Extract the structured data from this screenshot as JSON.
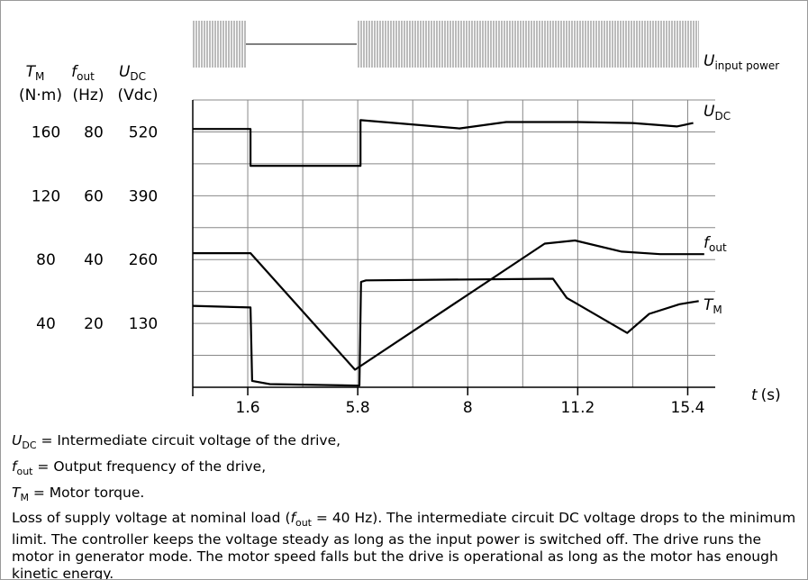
{
  "chart_data": {
    "type": "line",
    "input_power_label": {
      "main": "U",
      "sub": "input power"
    },
    "axis_headers": [
      {
        "main": "T",
        "sub": "M",
        "unit": "(N·m)"
      },
      {
        "main": "f",
        "sub": "out",
        "unit": "(Hz)"
      },
      {
        "main": "U",
        "sub": "DC",
        "unit": "(Vdc)"
      }
    ],
    "xlabel": {
      "main": "t",
      "unit": "(s)"
    },
    "xlim": [
      0,
      9.5
    ],
    "xticks": [
      {
        "value": 1,
        "label": "1.6"
      },
      {
        "value": 3,
        "label": "5.8"
      },
      {
        "value": 5,
        "label": "8"
      },
      {
        "value": 7,
        "label": "11.2"
      },
      {
        "value": 9,
        "label": "15.4"
      }
    ],
    "minor_xticks": [
      2,
      4,
      6,
      8
    ],
    "ylim": [
      0,
      585
    ],
    "yticks": [
      130,
      260,
      390,
      520
    ],
    "minor_yticks": [
      65,
      195,
      325,
      455,
      585
    ],
    "y2lim": [
      0,
      90
    ],
    "y2ticks": [
      20,
      40,
      60,
      80
    ],
    "y3lim": [
      0,
      180
    ],
    "y3ticks": [
      40,
      80,
      120,
      160
    ],
    "grid": true,
    "series": [
      {
        "name": "U",
        "name_sub": "DC",
        "color": "#000000",
        "axis": "y",
        "x": [
          0,
          1.05,
          1.05,
          3.05,
          3.05,
          4.85,
          5.7,
          7,
          8,
          8.8,
          9.1
        ],
        "values": [
          526,
          526,
          451,
          451,
          544,
          527,
          540,
          540,
          538,
          531,
          538
        ]
      },
      {
        "name": "f",
        "name_sub": "out",
        "color": "#000000",
        "axis": "y2",
        "x": [
          0,
          1.05,
          2.95,
          6.4,
          6.95,
          7.8,
          8.5,
          9.3
        ],
        "values": [
          42,
          42,
          5.5,
          45,
          46,
          42.5,
          41.7,
          41.7
        ]
      },
      {
        "name": "T",
        "name_sub": "M",
        "color": "#000000",
        "axis": "y3",
        "x": [
          0,
          1.05,
          1.08,
          1.4,
          3.03,
          3.06,
          3.15,
          6.55,
          6.8,
          7.9,
          8.3,
          8.85,
          9.2
        ],
        "values": [
          51,
          50,
          4,
          2,
          1,
          66,
          67,
          68,
          56,
          34,
          46,
          52,
          54
        ]
      }
    ],
    "notes": [
      {
        "main": "U",
        "sub": "DC",
        "text": " = Intermediate circuit voltage of the drive,"
      },
      {
        "main": "f",
        "sub": "out",
        "text": " = Output frequency of the drive,"
      },
      {
        "main": "T",
        "sub": "M",
        "text": " = Motor torque."
      }
    ],
    "paragraph": {
      "before": "Loss of supply voltage at nominal load (",
      "main": "f",
      "sub": "out",
      "after": " = 40 Hz). The intermediate circuit DC voltage drops to the minimum limit. The controller keeps the voltage steady as long as the input power is switched off. The drive runs the motor in generator mode. The motor speed falls but the drive is operational as long as the motor has enough kinetic energy."
    }
  }
}
